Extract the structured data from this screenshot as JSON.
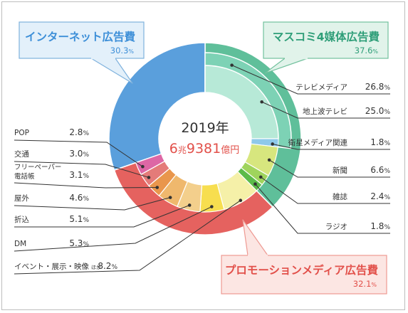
{
  "chart_data": {
    "type": "pie",
    "center": {
      "year": "2019年",
      "total_prefix": "6",
      "total_unit1": "兆",
      "total_number": "9381",
      "total_unit2": "億円"
    },
    "categories": [
      {
        "key": "internet",
        "name": "インターネット広告費",
        "value": 30.3,
        "value_label": "30.3",
        "unit": "%",
        "color": "#5a9fdc",
        "label_bg": "#e3f0fa",
        "label_border": "#7fb2dd",
        "name_color": "#3d8fd8",
        "items": []
      },
      {
        "key": "mass",
        "name": "マスコミ4媒体広告費",
        "value": 37.6,
        "value_label": "37.6",
        "unit": "%",
        "color": "#5fbf9a",
        "label_bg": "#e1f3ea",
        "label_border": "#72c19d",
        "name_color": "#2e9e78",
        "items": [
          {
            "name": "テレビメディア",
            "value": 26.8,
            "value_label": "26.8",
            "color": "#7dd2b5"
          },
          {
            "name": "地上波テレビ",
            "value": 25.0,
            "value_label": "25.0",
            "color": "#b7e9d7"
          },
          {
            "name": "衛星メディア関連",
            "value": 1.8,
            "value_label": "1.8",
            "color": "#8ec9ea"
          },
          {
            "name": "新聞",
            "value": 6.6,
            "value_label": "6.6",
            "color": "#d7e67e"
          },
          {
            "name": "雑誌",
            "value": 2.4,
            "value_label": "2.4",
            "color": "#9fd45c"
          },
          {
            "name": "ラジオ",
            "value": 1.8,
            "value_label": "1.8",
            "color": "#5cbb4a"
          }
        ]
      },
      {
        "key": "promo",
        "name": "プロモーションメディア広告費",
        "value": 32.1,
        "value_label": "32.1",
        "unit": "%",
        "color": "#e5625f",
        "label_bg": "#fce6e3",
        "label_border": "#ee9a93",
        "name_color": "#e2504a",
        "items": [
          {
            "name": "イベント・展示・映像",
            "suffix": "ほか",
            "value": 8.2,
            "value_label": "8.2",
            "color": "#f5f0a8"
          },
          {
            "name": "DM",
            "value": 5.3,
            "value_label": "5.3",
            "color": "#f7de4f"
          },
          {
            "name": "折込",
            "value": 5.1,
            "value_label": "5.1",
            "color": "#f3cf8c"
          },
          {
            "name": "屋外",
            "value": 4.6,
            "value_label": "4.6",
            "color": "#efb86d"
          },
          {
            "name": "フリーペーパー\n電話帳",
            "value": 3.1,
            "value_label": "3.1",
            "color": "#e9964c"
          },
          {
            "name": "交通",
            "value": 3.0,
            "value_label": "3.0",
            "color": "#e47b79"
          },
          {
            "name": "POP",
            "value": 2.8,
            "value_label": "2.8",
            "color": "#dd67a5"
          }
        ]
      }
    ],
    "unit": "%"
  }
}
